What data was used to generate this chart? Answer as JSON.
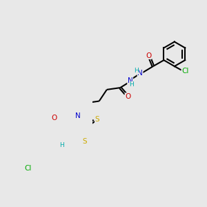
{
  "bg_color": "#e8e8e8",
  "colors": {
    "C": "#000000",
    "N": "#0000cc",
    "O": "#cc0000",
    "S": "#ccaa00",
    "Cl": "#00aa00",
    "H": "#00aaaa",
    "bond": "#000000"
  },
  "lw": 1.5,
  "fs": 7.5
}
